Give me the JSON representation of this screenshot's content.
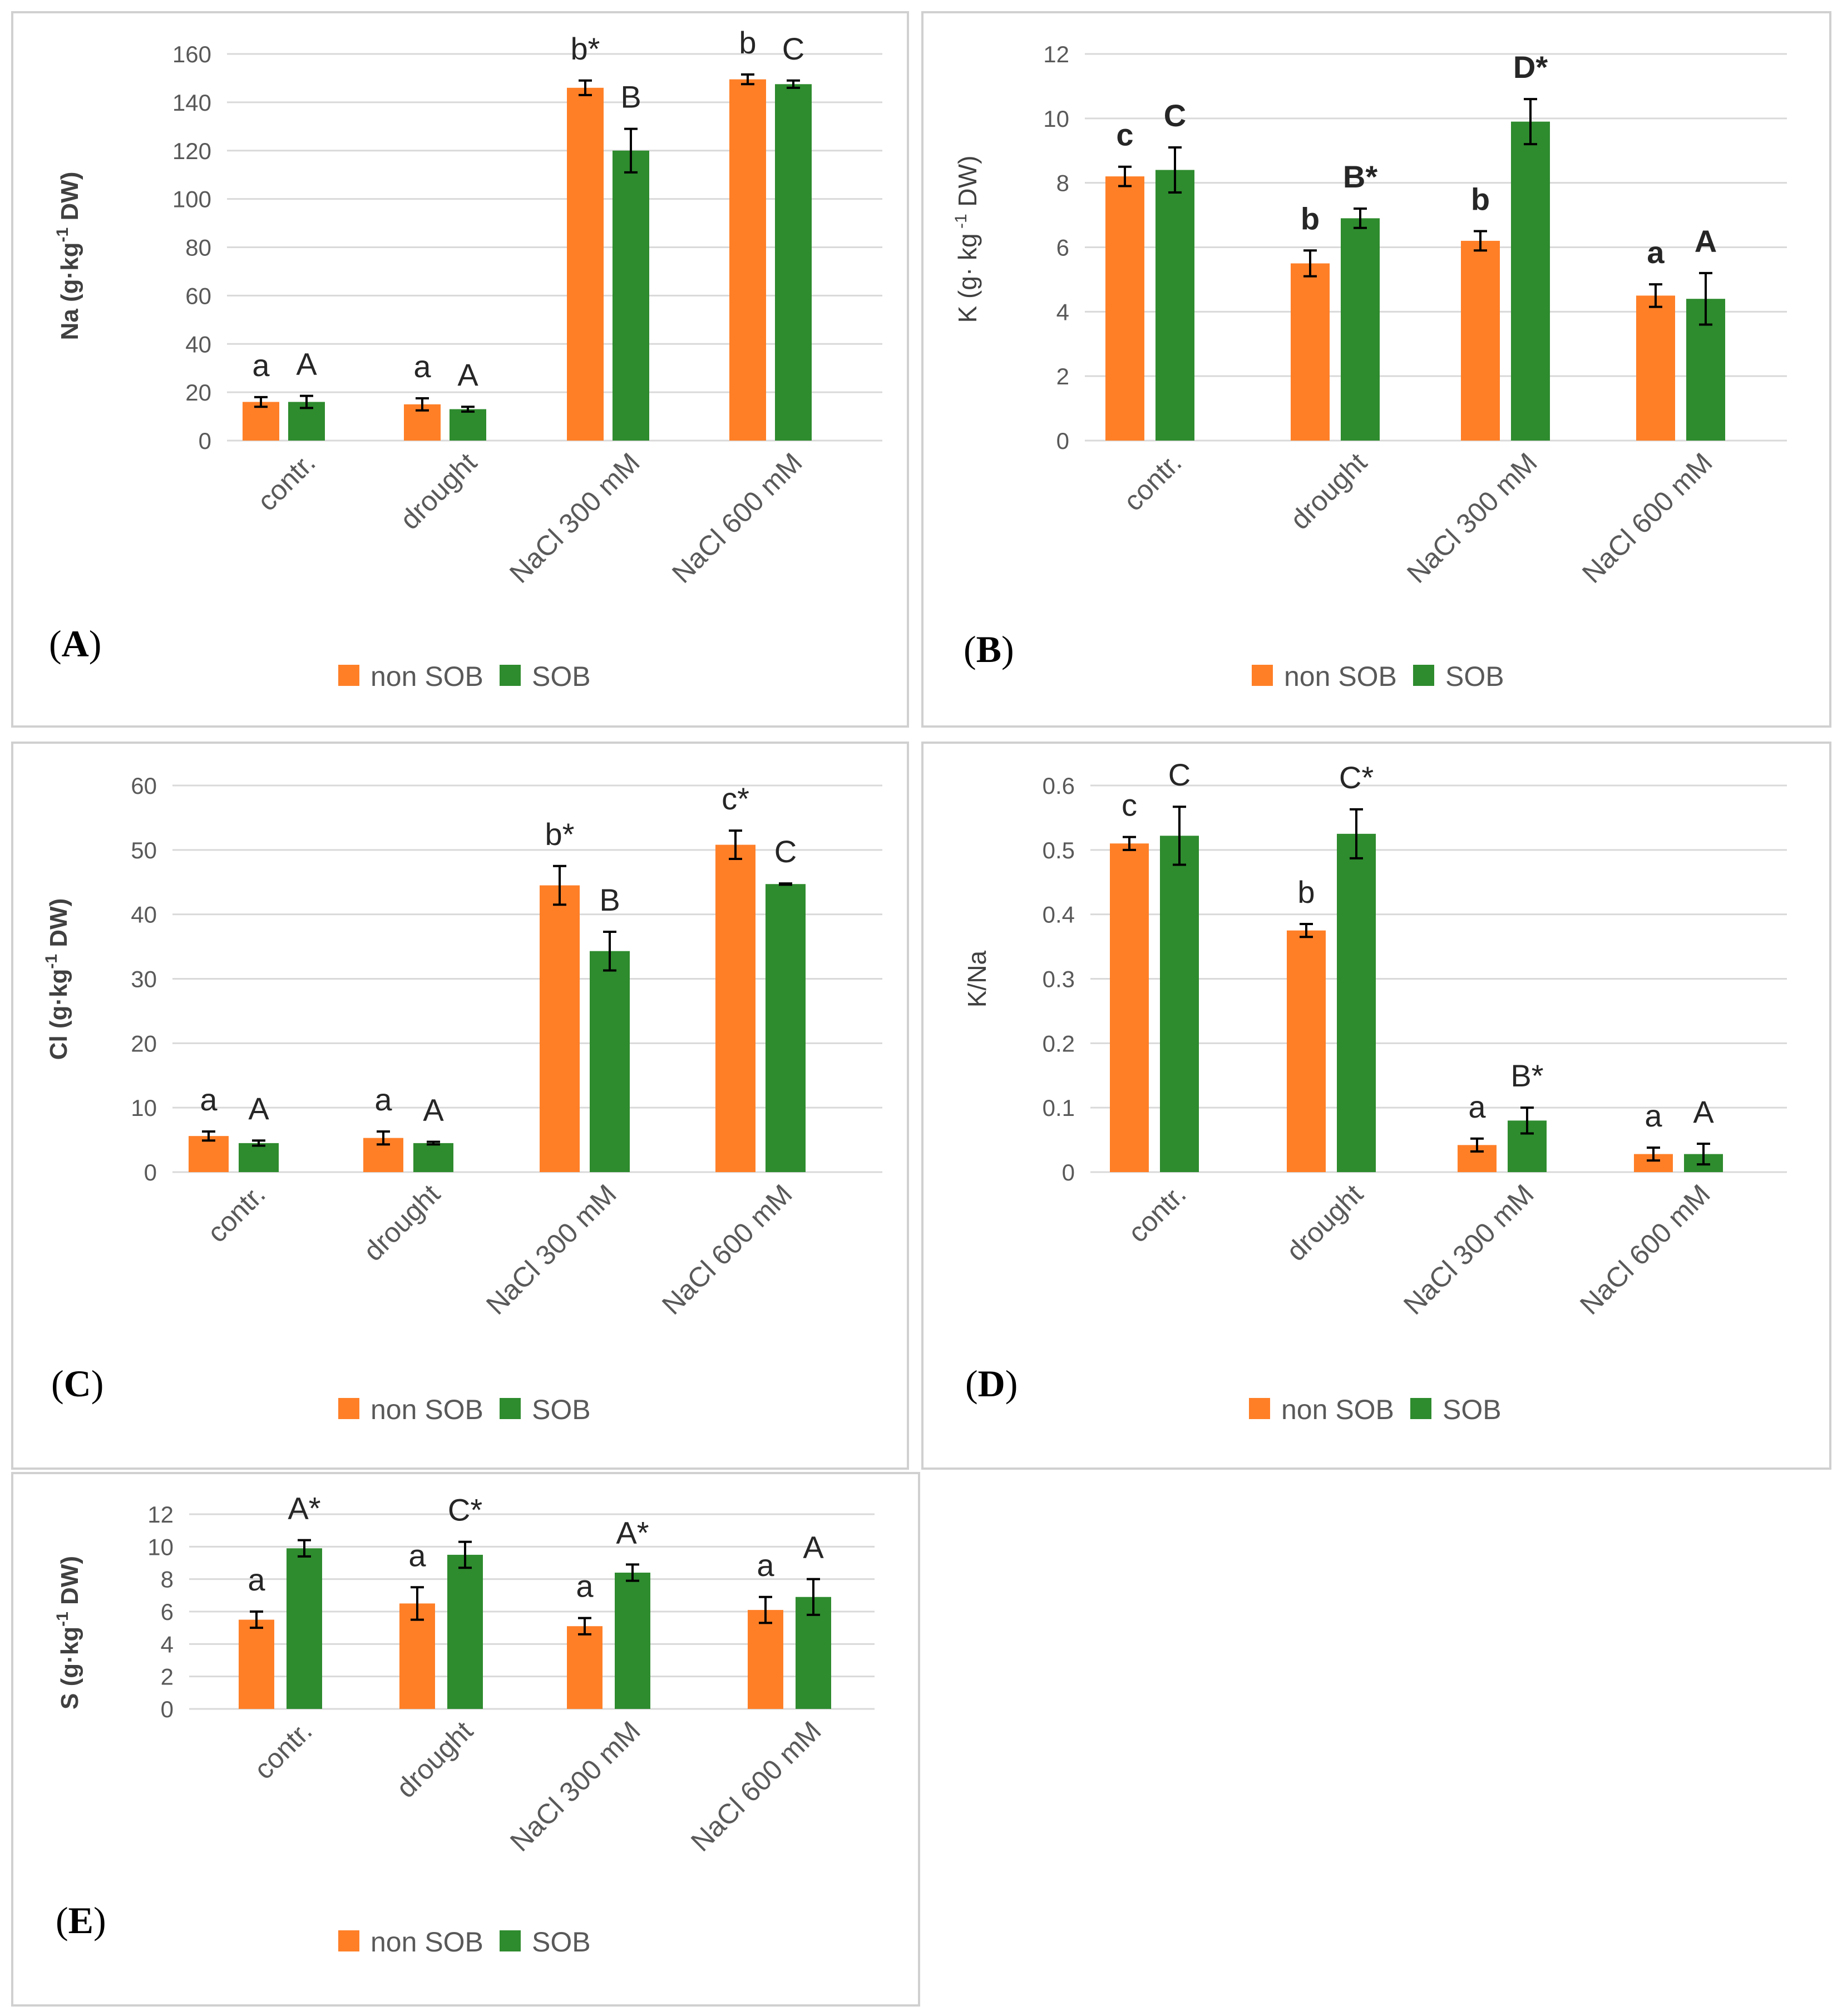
{
  "colors": {
    "non_sob": "#ff7f27",
    "sob": "#2e8b2e"
  },
  "legend": {
    "non_sob": "non SOB",
    "sob": "SOB"
  },
  "chart_data": [
    {
      "panel": "A",
      "panel_label": "A",
      "type": "bar",
      "ylabel_parts": [
        "Na (g·kg",
        "-1",
        " DW)"
      ],
      "ylim": [
        0,
        160
      ],
      "yticks": [
        0,
        20,
        40,
        60,
        80,
        100,
        120,
        140,
        160
      ],
      "categories": [
        "contr.",
        "drought",
        "NaCl 300 mM",
        "NaCl 600 mM"
      ],
      "series": [
        {
          "name": "non SOB",
          "values": [
            16,
            15,
            146,
            149.5
          ],
          "errors": [
            2,
            2.5,
            3,
            2
          ],
          "letters": [
            "a",
            "a",
            "b*",
            "b"
          ]
        },
        {
          "name": "SOB",
          "values": [
            16,
            13,
            120,
            147.5
          ],
          "errors": [
            2.5,
            1,
            9,
            1.5
          ],
          "letters": [
            "A",
            "A",
            "B",
            "C"
          ]
        }
      ]
    },
    {
      "panel": "B",
      "panel_label": "B",
      "type": "bar",
      "ylabel_parts": [
        "K (g· kg",
        " -1",
        " DW)"
      ],
      "ylim": [
        0,
        12
      ],
      "yticks": [
        0,
        2,
        4,
        6,
        8,
        10,
        12
      ],
      "categories": [
        "contr.",
        "drought",
        "NaCl 300 mM",
        "NaCl 600 mM"
      ],
      "series": [
        {
          "name": "non SOB",
          "values": [
            8.2,
            5.5,
            6.2,
            4.5
          ],
          "errors": [
            0.3,
            0.4,
            0.3,
            0.35
          ],
          "letters": [
            "c",
            "b",
            "b",
            "a"
          ]
        },
        {
          "name": "SOB",
          "values": [
            8.4,
            6.9,
            9.9,
            4.4
          ],
          "errors": [
            0.7,
            0.3,
            0.7,
            0.8
          ],
          "letters": [
            "C",
            "B*",
            "D*",
            "A"
          ]
        }
      ]
    },
    {
      "panel": "C",
      "panel_label": "C",
      "type": "bar",
      "ylabel_parts": [
        "Cl (g·kg",
        "-1",
        " DW)"
      ],
      "ylim": [
        0,
        60
      ],
      "yticks": [
        0,
        10,
        20,
        30,
        40,
        50,
        60
      ],
      "categories": [
        "contr.",
        "drought",
        "NaCl 300 mM",
        "NaCl 600 mM"
      ],
      "series": [
        {
          "name": "non SOB",
          "values": [
            5.6,
            5.3,
            44.5,
            50.8
          ],
          "errors": [
            0.7,
            1,
            3,
            2.2
          ],
          "letters": [
            "a",
            "a",
            "b*",
            "c*"
          ]
        },
        {
          "name": "SOB",
          "values": [
            4.5,
            4.5,
            34.3,
            44.7
          ],
          "errors": [
            0.4,
            0.2,
            3,
            0.1
          ],
          "letters": [
            "A",
            "A",
            "B",
            "C"
          ]
        }
      ]
    },
    {
      "panel": "D",
      "panel_label": "D",
      "type": "bar",
      "ylabel_parts": [
        "K/Na",
        "",
        ""
      ],
      "ylim": [
        0,
        0.6
      ],
      "yticks": [
        0,
        0.1,
        0.2,
        0.3,
        0.4,
        0.5,
        0.6
      ],
      "categories": [
        "contr.",
        "drought",
        "NaCl 300 mM",
        "NaCl 600 mM"
      ],
      "series": [
        {
          "name": "non SOB",
          "values": [
            0.51,
            0.375,
            0.042,
            0.028
          ],
          "errors": [
            0.01,
            0.01,
            0.01,
            0.01
          ],
          "letters": [
            "c",
            "b",
            "a",
            "a"
          ]
        },
        {
          "name": "SOB",
          "values": [
            0.522,
            0.525,
            0.08,
            0.028
          ],
          "errors": [
            0.045,
            0.038,
            0.02,
            0.016
          ],
          "letters": [
            "C",
            "C*",
            "B*",
            "A"
          ]
        }
      ]
    },
    {
      "panel": "E",
      "panel_label": "E",
      "type": "bar",
      "ylabel_parts": [
        "S (g·kg",
        "-1",
        " DW)"
      ],
      "ylim": [
        0,
        12
      ],
      "yticks": [
        0,
        2,
        4,
        6,
        8,
        10,
        12
      ],
      "categories": [
        "contr.",
        "drought",
        "NaCl 300 mM",
        "NaCl 600 mM"
      ],
      "series": [
        {
          "name": "non SOB",
          "values": [
            5.5,
            6.5,
            5.1,
            6.1
          ],
          "errors": [
            0.5,
            1,
            0.5,
            0.8
          ],
          "letters": [
            "a",
            "a",
            "a",
            "a"
          ]
        },
        {
          "name": "SOB",
          "values": [
            9.9,
            9.5,
            8.4,
            6.9
          ],
          "errors": [
            0.5,
            0.8,
            0.5,
            1.1
          ],
          "letters": [
            "A*",
            "C*",
            "A*",
            "A"
          ]
        }
      ]
    }
  ]
}
